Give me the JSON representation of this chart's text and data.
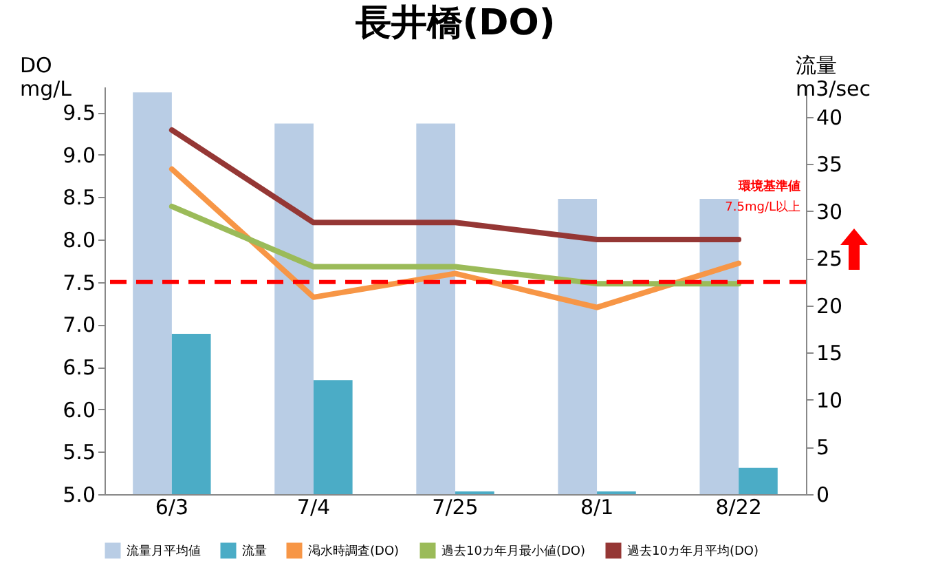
{
  "chart_data": {
    "type": "bar",
    "title": "長井橋(DO)",
    "ylabel": "DO\nmg/L",
    "y2label": "流量\nm3/sec",
    "categories": [
      "6/3",
      "7/4",
      "7/25",
      "8/1",
      "8/22"
    ],
    "series": [
      {
        "name": "流量月平均値",
        "axis": "y2",
        "color": "#b9cde5",
        "values": [
          42.6,
          39.3,
          39.3,
          31.3,
          31.3
        ]
      },
      {
        "name": "流量",
        "axis": "y2",
        "color": "#4bacc6",
        "values": [
          17.0,
          12.1,
          0.3,
          0.3,
          2.8
        ]
      },
      {
        "name": "渇水時調査(DO)",
        "type": "line",
        "color": "#f79646",
        "values": [
          8.83,
          7.32,
          7.6,
          7.2,
          7.72
        ]
      },
      {
        "name": "過去10カ年月最小値(DO)",
        "type": "line",
        "color": "#9bbb59",
        "values": [
          8.39,
          7.68,
          7.68,
          7.48,
          7.48
        ]
      },
      {
        "name": "過去10カ年月平均(DO)",
        "type": "line",
        "color": "#953735",
        "values": [
          9.29,
          8.2,
          8.2,
          8.0,
          8.0
        ]
      }
    ],
    "ylim": [
      5,
      9.8
    ],
    "yticks": [
      {
        "value": 5,
        "label": "5.0"
      },
      5.5,
      {
        "value": 6,
        "label": "6.0"
      },
      6.5,
      {
        "value": 7,
        "label": "7.0"
      },
      7.5,
      {
        "value": 8,
        "label": "8.0"
      },
      8.5,
      {
        "value": 9,
        "label": "9.0"
      },
      9.5
    ],
    "y2lim": [
      0,
      43.2
    ],
    "y2ticks": [
      0,
      5,
      10,
      15,
      20,
      25,
      30,
      35,
      40
    ],
    "ref_lines": [
      {
        "axis": "y",
        "value": 7.5,
        "color": "#ff0000",
        "line_style": "dashed"
      }
    ],
    "annotations": [
      "環境基準値",
      "7.5mg/L以上"
    ],
    "legend": "bottom",
    "grid": false
  }
}
